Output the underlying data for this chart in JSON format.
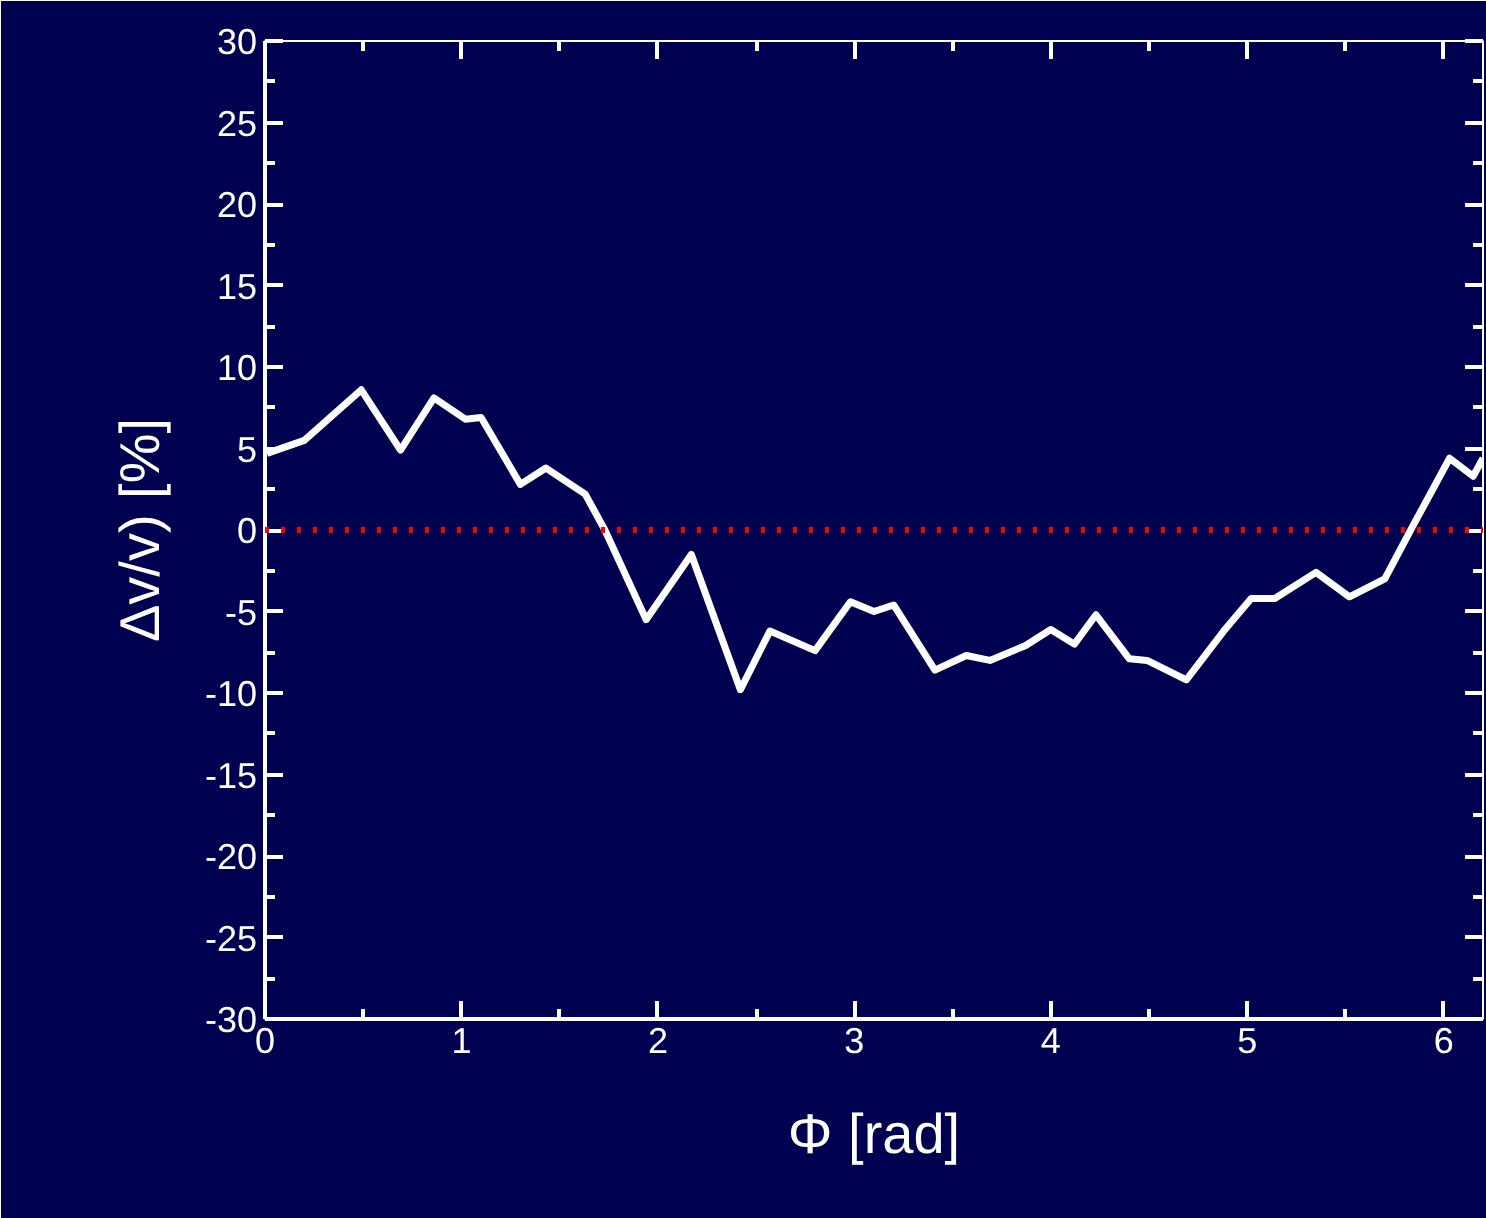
{
  "chart_data": {
    "type": "line",
    "xlabel": "Φ [rad]",
    "ylabel": "Δv/v) [%]",
    "xlim": [
      0,
      6.2
    ],
    "ylim": [
      -30,
      30
    ],
    "xticks": [
      0,
      1,
      2,
      3,
      4,
      5,
      6
    ],
    "yticks": [
      -30,
      -25,
      -20,
      -15,
      -10,
      -5,
      0,
      5,
      10,
      15,
      20,
      25,
      30
    ],
    "line_style": "solid",
    "series": [
      {
        "color": "#ffffff",
        "x": [
          0.01,
          0.2,
          0.49,
          0.69,
          0.86,
          1.02,
          1.1,
          1.3,
          1.43,
          1.63,
          1.73,
          1.94,
          2.17,
          2.42,
          2.57,
          2.8,
          2.98,
          3.1,
          3.2,
          3.41,
          3.57,
          3.69,
          3.87,
          4.0,
          4.12,
          4.23,
          4.4,
          4.49,
          4.69,
          4.88,
          5.02,
          5.14,
          5.35,
          5.52,
          5.7,
          5.85,
          6.03,
          6.15,
          6.2
        ],
        "values": [
          4.7,
          5.5,
          8.6,
          4.9,
          8.1,
          6.8,
          6.9,
          2.8,
          3.8,
          2.2,
          0,
          -5.5,
          -1.5,
          -9.8,
          -6.2,
          -7.4,
          -4.4,
          -5.0,
          -4.6,
          -8.6,
          -7.7,
          -8.0,
          -7.1,
          -6.1,
          -7.0,
          -5.2,
          -7.9,
          -8.0,
          -9.2,
          -6.2,
          -4.2,
          -4.2,
          -2.6,
          -4.1,
          -3.0,
          0.4,
          4.4,
          3.3,
          4.4
        ]
      }
    ],
    "ref_lines": [
      {
        "axis": "y",
        "value": 0,
        "color": "#ff0000",
        "line_style": "dotted"
      }
    ]
  }
}
